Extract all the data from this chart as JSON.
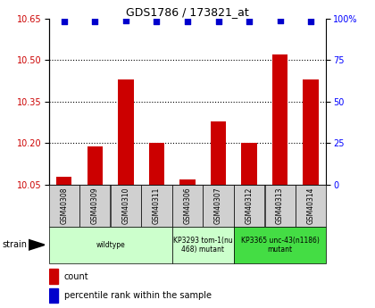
{
  "title": "GDS1786 / 173821_at",
  "samples": [
    "GSM40308",
    "GSM40309",
    "GSM40310",
    "GSM40311",
    "GSM40306",
    "GSM40307",
    "GSM40312",
    "GSM40313",
    "GSM40314"
  ],
  "count_values": [
    10.08,
    10.19,
    10.43,
    10.2,
    10.07,
    10.28,
    10.2,
    10.52,
    10.43
  ],
  "percentile_values": [
    98,
    98,
    99,
    98,
    98,
    98,
    98,
    99,
    98
  ],
  "ylim_left": [
    10.05,
    10.65
  ],
  "ylim_right": [
    0,
    100
  ],
  "yticks_left": [
    10.05,
    10.2,
    10.35,
    10.5,
    10.65
  ],
  "yticks_right": [
    0,
    25,
    50,
    75,
    100
  ],
  "bar_color": "#cc0000",
  "dot_color": "#0000cc",
  "dot_color_right": "#0000ff",
  "bar_width": 0.5,
  "group_defs": [
    {
      "start": 0,
      "end": 3,
      "label": "wildtype",
      "color": "#ccffcc"
    },
    {
      "start": 4,
      "end": 5,
      "label": "KP3293 tom-1(nu\n468) mutant",
      "color": "#ccffcc"
    },
    {
      "start": 6,
      "end": 8,
      "label": "KP3365 unc-43(n1186)\nmutant",
      "color": "#44dd44"
    }
  ],
  "legend_count_label": "count",
  "legend_pct_label": "percentile rank within the sample",
  "strain_label": "strain",
  "grid_color": "black",
  "sample_box_color": "#d0d0d0",
  "right_tick_color": "#0000ff",
  "left_tick_color": "#cc0000"
}
